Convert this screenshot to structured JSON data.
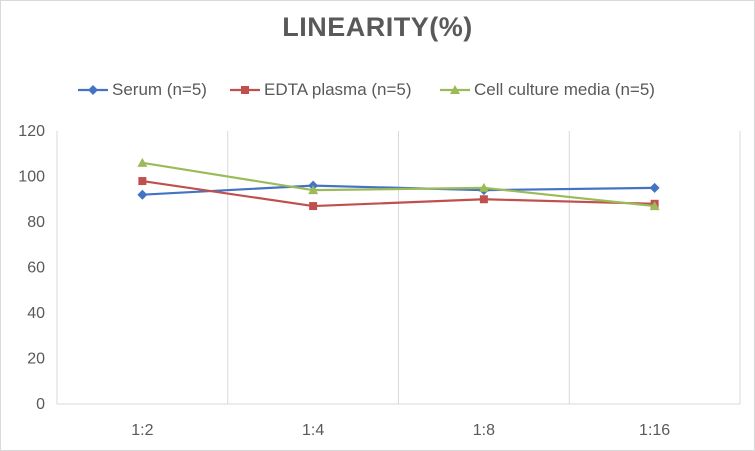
{
  "chart_data": {
    "type": "line",
    "title": "LINEARITY(%)",
    "categories": [
      "1:2",
      "1:4",
      "1:8",
      "1:16"
    ],
    "ylim": [
      0,
      120
    ],
    "yticks": [
      0,
      20,
      40,
      60,
      80,
      100,
      120
    ],
    "grid": "vertical-category-lines",
    "legend_position": "top",
    "series": [
      {
        "name": "Serum (n=5)",
        "values": [
          92,
          96,
          94,
          95
        ],
        "color": "#4472c4",
        "marker": "diamond"
      },
      {
        "name": "EDTA plasma (n=5)",
        "values": [
          98,
          87,
          90,
          88
        ],
        "color": "#c0504d",
        "marker": "square"
      },
      {
        "name": "Cell culture media (n=5)",
        "values": [
          106,
          94,
          95,
          87
        ],
        "color": "#9bbb59",
        "marker": "triangle"
      }
    ]
  }
}
